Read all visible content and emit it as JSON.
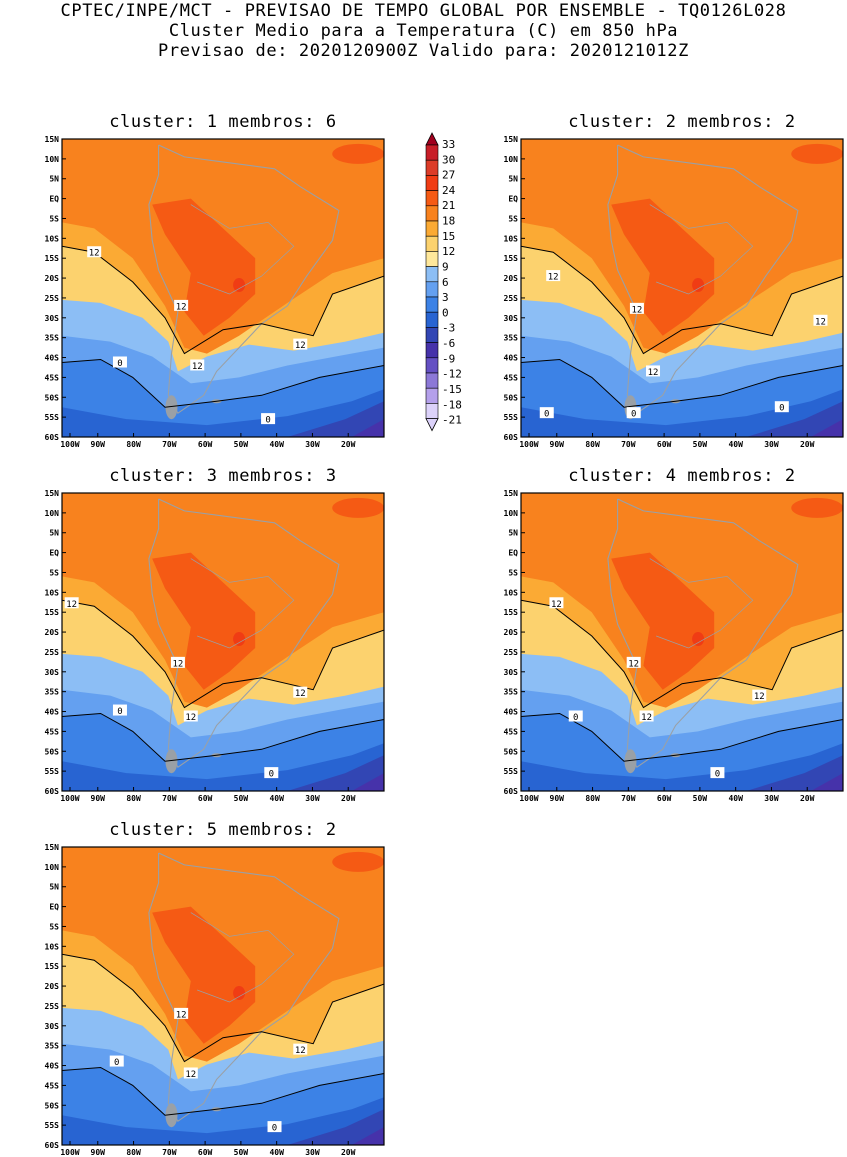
{
  "header": {
    "line1": "CPTEC/INPE/MCT - PREVISAO DE TEMPO GLOBAL POR ENSEMBLE - TQ0126L028",
    "line2": "Cluster Medio para a Temperatura (C) em 850 hPa",
    "line3": "Previsao de: 2020120900Z   Valido para: 2020121012Z"
  },
  "axes": {
    "lat_labels": [
      "15N",
      "10N",
      "5N",
      "EQ",
      "5S",
      "10S",
      "15S",
      "20S",
      "25S",
      "30S",
      "35S",
      "40S",
      "45S",
      "50S",
      "55S",
      "60S"
    ],
    "lon_labels": [
      "100W",
      "90W",
      "80W",
      "70W",
      "60W",
      "50W",
      "40W",
      "30W",
      "20W"
    ]
  },
  "colorbar": {
    "levels": [
      "33",
      "30",
      "27",
      "24",
      "21",
      "18",
      "15",
      "12",
      "9",
      "6",
      "3",
      "0",
      "-3",
      "-6",
      "-9",
      "-12",
      "-15",
      "-18",
      "-21"
    ],
    "colors": [
      "#a0001e",
      "#c81e28",
      "#dc3c28",
      "#f03c14",
      "#f55a14",
      "#f8821e",
      "#fbaa34",
      "#fcd26e",
      "#ffe89b",
      "#8cbef5",
      "#64a0f0",
      "#3c82e6",
      "#2864d2",
      "#3246b4",
      "#4632aa",
      "#6450c3",
      "#8c78d7",
      "#b4a0eb",
      "#dcd2fa"
    ]
  },
  "panels": [
    {
      "title": "cluster: 1   membros: 6",
      "contour_labels": [
        {
          "t": "12"
        },
        {
          "t": "12"
        },
        {
          "t": "12"
        },
        {
          "t": "12"
        },
        {
          "t": "0"
        },
        {
          "t": "0"
        }
      ]
    },
    {
      "title": "cluster: 2   membros: 2",
      "contour_labels": [
        {
          "t": "12"
        },
        {
          "t": "12"
        },
        {
          "t": "12"
        },
        {
          "t": "12"
        },
        {
          "t": "0"
        },
        {
          "t": "0"
        },
        {
          "t": "0"
        }
      ]
    },
    {
      "title": "cluster: 3   membros: 3",
      "contour_labels": [
        {
          "t": "12"
        },
        {
          "t": "12"
        },
        {
          "t": "12"
        },
        {
          "t": "12"
        },
        {
          "t": "0"
        },
        {
          "t": "0"
        }
      ]
    },
    {
      "title": "cluster: 4   membros: 2",
      "contour_labels": [
        {
          "t": "12"
        },
        {
          "t": "12"
        },
        {
          "t": "12"
        },
        {
          "t": "12"
        },
        {
          "t": "0"
        },
        {
          "t": "0"
        }
      ]
    },
    {
      "title": "cluster: 5   membros: 2",
      "contour_labels": [
        {
          "t": "12"
        },
        {
          "t": "12"
        },
        {
          "t": "12"
        },
        {
          "t": "0"
        },
        {
          "t": "0"
        }
      ]
    }
  ]
}
